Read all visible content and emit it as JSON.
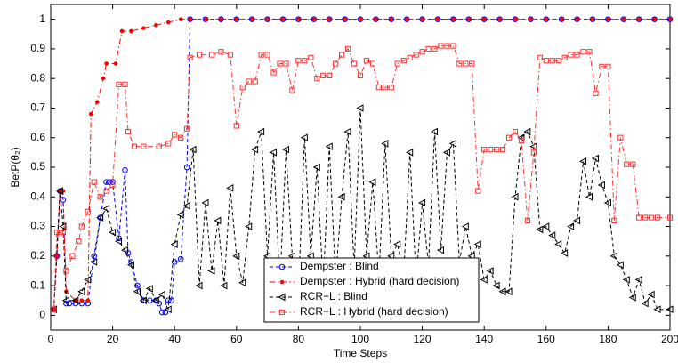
{
  "chart_data": {
    "type": "line",
    "xlabel": "Time Steps",
    "ylabel": "BetP(θ₂)",
    "xlim": [
      0,
      200
    ],
    "ylim": [
      -0.05,
      1.05
    ],
    "xticks": [
      0,
      20,
      40,
      60,
      80,
      100,
      120,
      140,
      160,
      180,
      200
    ],
    "yticks": [
      0,
      0.1,
      0.2,
      0.3,
      0.4,
      0.5,
      0.6,
      0.7,
      0.8,
      0.9,
      1
    ],
    "legend": "lower-center",
    "series": [
      {
        "name": "Dempster : Blind",
        "color": "#0000ff",
        "marker": "circle",
        "dash": "dashed",
        "x": [
          1,
          2,
          3,
          4,
          5,
          6,
          8,
          10,
          12,
          14,
          16,
          18,
          19,
          20,
          22,
          24,
          25,
          26,
          28,
          30,
          32,
          34,
          35,
          36,
          37,
          38,
          39,
          40,
          42,
          44,
          45,
          50,
          55,
          60,
          65,
          70,
          75,
          80,
          85,
          90,
          95,
          100,
          105,
          110,
          115,
          120,
          125,
          130,
          135,
          140,
          145,
          150,
          155,
          160,
          165,
          170,
          175,
          180,
          185,
          190,
          195,
          200
        ],
        "values": [
          0.02,
          0.2,
          0.42,
          0.39,
          0.04,
          0.04,
          0.04,
          0.04,
          0.04,
          0.2,
          0.33,
          0.45,
          0.45,
          0.45,
          0.26,
          0.49,
          0.21,
          0.18,
          0.1,
          0.05,
          0.05,
          0.05,
          0.04,
          0.01,
          0.01,
          0.05,
          0.05,
          0.18,
          0.19,
          0.5,
          1,
          1,
          1,
          1,
          1,
          1,
          1,
          1,
          1,
          1,
          1,
          1,
          1,
          1,
          1,
          1,
          1,
          1,
          1,
          1,
          1,
          1,
          1,
          1,
          1,
          1,
          1,
          1,
          1,
          1,
          1,
          1
        ]
      },
      {
        "name": "Dempster : Hybrid (hard decision)",
        "color": "#ff0000",
        "marker": "dot",
        "dash": "dashdot",
        "x": [
          1,
          2,
          3,
          4,
          5,
          8,
          10,
          12,
          13,
          15,
          17,
          18,
          21,
          23,
          26,
          30,
          34,
          38,
          42,
          45,
          50,
          55,
          60,
          65,
          70,
          75,
          80,
          85,
          90,
          95,
          100,
          105,
          110,
          115,
          120,
          125,
          130,
          135,
          140,
          145,
          150,
          155,
          160,
          165,
          170,
          175,
          180,
          185,
          190,
          195,
          200
        ],
        "values": [
          0.02,
          0.2,
          0.42,
          0.42,
          0.08,
          0.05,
          0.05,
          0.05,
          0.68,
          0.72,
          0.8,
          0.85,
          0.85,
          0.96,
          0.96,
          0.97,
          0.98,
          0.99,
          1,
          1,
          1,
          1,
          1,
          1,
          1,
          1,
          1,
          1,
          1,
          1,
          1,
          1,
          1,
          1,
          1,
          1,
          1,
          1,
          1,
          1,
          1,
          1,
          1,
          1,
          1,
          1,
          1,
          1,
          1,
          1,
          1
        ]
      },
      {
        "name": "RCR−L :  Blind",
        "color": "#000000",
        "marker": "triangle-left",
        "dash": "dashed",
        "x": [
          1,
          3,
          4,
          5,
          8,
          10,
          12,
          14,
          16,
          18,
          20,
          22,
          24,
          26,
          28,
          30,
          32,
          34,
          36,
          38,
          40,
          42,
          44,
          46,
          48,
          50,
          52,
          54,
          56,
          58,
          60,
          62,
          64,
          66,
          68,
          70,
          72,
          74,
          76,
          78,
          80,
          82,
          84,
          86,
          88,
          90,
          92,
          94,
          96,
          98,
          100,
          102,
          104,
          106,
          108,
          110,
          112,
          114,
          116,
          118,
          120,
          122,
          124,
          126,
          128,
          130,
          132,
          134,
          136,
          138,
          140,
          142,
          144,
          146,
          148,
          150,
          152,
          154,
          156,
          158,
          160,
          162,
          164,
          166,
          168,
          170,
          172,
          174,
          176,
          178,
          180,
          182,
          184,
          186,
          188,
          190,
          192,
          194,
          196,
          200
        ],
        "values": [
          0.02,
          0.42,
          0.3,
          0.05,
          0.05,
          0.08,
          0.12,
          0.18,
          0.33,
          0.36,
          0.28,
          0.25,
          0.22,
          0.17,
          0.08,
          0.05,
          0.09,
          0.05,
          0.07,
          0.02,
          0.24,
          0.34,
          0.37,
          0.56,
          0.1,
          0.38,
          0.15,
          0.32,
          0.1,
          0.43,
          0.2,
          0.11,
          0.3,
          0.56,
          0.62,
          0.2,
          0.55,
          0.1,
          0.56,
          0.2,
          0.08,
          0.6,
          0.2,
          0.5,
          0.1,
          0.57,
          0.12,
          0.4,
          0.62,
          0.16,
          0.7,
          0.2,
          0.45,
          0.13,
          0.58,
          0.2,
          0.24,
          0.14,
          0.55,
          0.12,
          0.38,
          0.17,
          0.62,
          0.22,
          0.55,
          0.58,
          0.18,
          0.3,
          0.2,
          0.24,
          0.12,
          0.15,
          0.1,
          0.08,
          0.08,
          0.4,
          0.6,
          0.62,
          0.57,
          0.29,
          0.3,
          0.27,
          0.24,
          0.21,
          0.3,
          0.32,
          0.52,
          0.4,
          0.53,
          0.44,
          0.38,
          0.2,
          0.17,
          0.12,
          0.06,
          0.12,
          0.04,
          0.07,
          0.02,
          0.02
        ]
      },
      {
        "name": "RCR−L : Hybrid (hard decision)",
        "color": "#ff3030",
        "marker": "square",
        "dash": "dashdot",
        "x": [
          1,
          2,
          3,
          4,
          5,
          7,
          9,
          10,
          12,
          14,
          16,
          18,
          20,
          22,
          24,
          25,
          27,
          30,
          35,
          38,
          40,
          42,
          44,
          45,
          48,
          52,
          55,
          58,
          60,
          62,
          64,
          66,
          68,
          70,
          72,
          74,
          76,
          78,
          80,
          82,
          84,
          86,
          88,
          90,
          92,
          94,
          96,
          98,
          100,
          102,
          104,
          106,
          108,
          110,
          112,
          114,
          116,
          118,
          120,
          122,
          124,
          126,
          128,
          130,
          132,
          134,
          136,
          138,
          140,
          142,
          144,
          146,
          148,
          150,
          152,
          154,
          156,
          158,
          160,
          162,
          164,
          166,
          168,
          170,
          172,
          174,
          176,
          178,
          180,
          182,
          184,
          186,
          188,
          190,
          192,
          194,
          196,
          200
        ],
        "values": [
          0.02,
          0.28,
          0.28,
          0.28,
          0.15,
          0.2,
          0.25,
          0.3,
          0.35,
          0.45,
          0.4,
          0.42,
          0.44,
          0.78,
          0.78,
          0.62,
          0.57,
          0.57,
          0.57,
          0.58,
          0.61,
          0.6,
          0.63,
          0.87,
          0.88,
          0.88,
          0.89,
          0.88,
          0.64,
          0.77,
          0.79,
          0.79,
          0.88,
          0.88,
          0.82,
          0.85,
          0.85,
          0.76,
          0.86,
          0.86,
          0.87,
          0.8,
          0.81,
          0.81,
          0.85,
          0.88,
          0.9,
          0.85,
          0.81,
          0.86,
          0.85,
          0.77,
          0.77,
          0.77,
          0.85,
          0.86,
          0.87,
          0.88,
          0.89,
          0.9,
          0.9,
          0.91,
          0.91,
          0.91,
          0.85,
          0.85,
          0.85,
          0.42,
          0.56,
          0.56,
          0.56,
          0.56,
          0.6,
          0.62,
          0.59,
          0.32,
          0.55,
          0.87,
          0.86,
          0.86,
          0.86,
          0.87,
          0.88,
          0.88,
          0.89,
          0.89,
          0.75,
          0.84,
          0.84,
          0.32,
          0.6,
          0.51,
          0.51,
          0.33,
          0.33,
          0.33,
          0.33,
          0.33
        ]
      }
    ]
  }
}
